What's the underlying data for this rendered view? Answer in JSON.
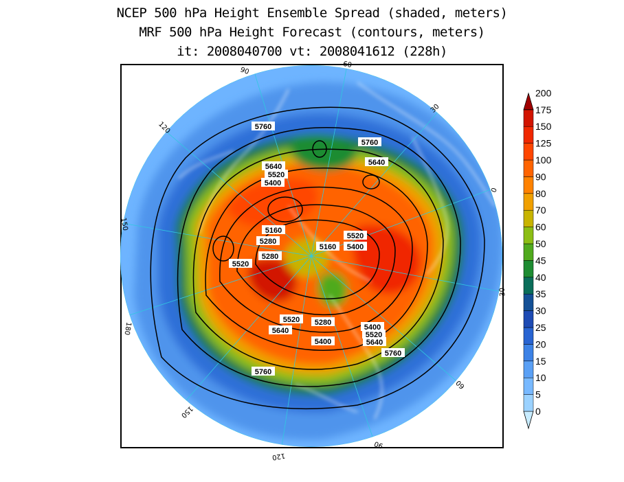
{
  "titles": {
    "line1": "NCEP 500 hPa Height Ensemble Spread (shaded, meters)",
    "line2": "MRF 500 hPa Height Forecast (contours, meters)",
    "line3": "it: 2008040700     vt: 2008041612 (228h)"
  },
  "meridian_labels": [
    "60",
    "30",
    "0",
    "30",
    "60",
    "90",
    "120",
    "150",
    "180",
    "150",
    "120",
    "90"
  ],
  "contour_labels": [
    "5760",
    "5760",
    "5640",
    "5640",
    "5520",
    "5400",
    "5160",
    "5280",
    "5280",
    "5520",
    "5160",
    "5520",
    "5400",
    "5520",
    "5640",
    "5280",
    "5400",
    "5400",
    "5520",
    "5640",
    "5760",
    "5760"
  ],
  "colorbar": {
    "levels": [
      "0",
      "5",
      "10",
      "15",
      "20",
      "25",
      "30",
      "35",
      "40",
      "45",
      "50",
      "60",
      "70",
      "80",
      "90",
      "100",
      "125",
      "150",
      "175",
      "200"
    ],
    "colors": [
      "#c8ecff",
      "#9bd2ff",
      "#78b9ff",
      "#5aa0f5",
      "#3c82e6",
      "#2864d2",
      "#1e4bb4",
      "#145096",
      "#0a6e5a",
      "#1e8c32",
      "#50aa1e",
      "#8cbe14",
      "#c8b400",
      "#f0a000",
      "#ff8200",
      "#ff6400",
      "#ff4600",
      "#f02800",
      "#d21400",
      "#a00000"
    ]
  },
  "colors": {
    "ocean_low": "#6eb4ff",
    "land_line": "#ffffff",
    "frame": "#000000"
  }
}
